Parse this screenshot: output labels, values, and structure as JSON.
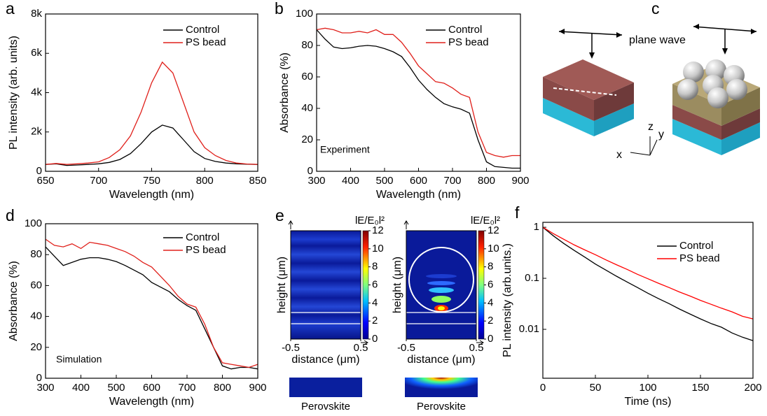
{
  "chart_data": [
    {
      "type": "line",
      "label": "a",
      "xlabel": "Wavelength (nm)",
      "ylabel": "PL intensity (arb. units)",
      "x": [
        650,
        660,
        670,
        680,
        690,
        700,
        710,
        720,
        730,
        740,
        750,
        760,
        770,
        780,
        790,
        800,
        810,
        820,
        830,
        840,
        850
      ],
      "series": [
        {
          "name": "Control",
          "color": "#000000",
          "values": [
            350,
            380,
            300,
            320,
            350,
            380,
            450,
            600,
            900,
            1400,
            2000,
            2350,
            2200,
            1600,
            1000,
            650,
            500,
            420,
            380,
            360,
            350
          ]
        },
        {
          "name": "PS bead",
          "color": "#e0201b",
          "values": [
            350,
            400,
            350,
            380,
            420,
            480,
            700,
            1100,
            1800,
            3000,
            4500,
            5550,
            5000,
            3500,
            2000,
            1200,
            800,
            550,
            420,
            370,
            350
          ]
        }
      ],
      "xlim": [
        650,
        850
      ],
      "xticks": [
        650,
        700,
        750,
        800,
        850
      ],
      "ylim": [
        0,
        8000
      ],
      "yticks": [
        0,
        {
          "value": 2000,
          "label": "2k"
        },
        {
          "value": 4000,
          "label": "4k"
        },
        {
          "value": 6000,
          "label": "6k"
        },
        {
          "value": 8000,
          "label": "8k"
        }
      ]
    },
    {
      "type": "line",
      "label": "b",
      "xlabel": "Wavelength (nm)",
      "ylabel": "Absorbance (%)",
      "annotation": "Experiment",
      "x": [
        300,
        325,
        350,
        375,
        400,
        425,
        450,
        475,
        500,
        525,
        550,
        575,
        600,
        625,
        650,
        675,
        700,
        725,
        750,
        775,
        800,
        825,
        850,
        875,
        900
      ],
      "series": [
        {
          "name": "Control",
          "color": "#000000",
          "values": [
            90,
            84,
            79,
            78,
            78.5,
            79.5,
            80,
            79.5,
            78,
            76,
            73,
            66,
            58,
            52,
            47,
            43,
            41,
            39.5,
            37,
            20,
            6,
            3,
            2.5,
            2,
            2
          ]
        },
        {
          "name": "PS bead",
          "color": "#e0201b",
          "values": [
            90,
            91,
            90,
            88,
            88,
            89,
            88,
            90,
            87,
            87,
            82,
            75,
            67,
            62,
            57,
            56,
            53,
            49,
            47,
            25,
            12,
            10,
            9,
            10,
            10
          ]
        }
      ],
      "xlim": [
        300,
        900
      ],
      "xticks": [
        300,
        400,
        500,
        600,
        700,
        800,
        900
      ],
      "ylim": [
        0,
        100
      ],
      "yticks": [
        0,
        20,
        40,
        60,
        80,
        100
      ]
    },
    {
      "type": "diagram",
      "label": "c",
      "annotation": "plane wave",
      "axis_labels": [
        "z",
        "y",
        "x"
      ]
    },
    {
      "type": "line",
      "label": "d",
      "xlabel": "Wavelength (nm)",
      "ylabel": "Absorbance (%)",
      "annotation": "Simulation",
      "x": [
        300,
        325,
        350,
        375,
        400,
        425,
        450,
        475,
        500,
        525,
        550,
        575,
        600,
        625,
        650,
        675,
        700,
        725,
        750,
        775,
        800,
        825,
        850,
        875,
        900
      ],
      "series": [
        {
          "name": "Control",
          "color": "#000000",
          "values": [
            85,
            79,
            73,
            75,
            77,
            78,
            78,
            77,
            75.5,
            73,
            70,
            67,
            62,
            59,
            56,
            51,
            47,
            44,
            32,
            20,
            8,
            6,
            7,
            7,
            6
          ]
        },
        {
          "name": "PS bead",
          "color": "#e0201b",
          "values": [
            90,
            86,
            85,
            87,
            84,
            88,
            87,
            86,
            84,
            82,
            79,
            75,
            72,
            66,
            60,
            53,
            48,
            46,
            35,
            20,
            10,
            9,
            8,
            7,
            9
          ]
        }
      ],
      "xlim": [
        300,
        900
      ],
      "xticks": [
        300,
        400,
        500,
        600,
        700,
        800,
        900
      ],
      "ylim": [
        0,
        100
      ],
      "yticks": [
        0,
        20,
        40,
        60,
        80,
        100
      ]
    },
    {
      "type": "heatmap",
      "label": "e",
      "colorbar_label": "lE/E₀l²",
      "xlabel": "distance (μm)",
      "ylabel": "height (μm)",
      "caption": "Perovskite",
      "xlim": [
        -0.5,
        0.5
      ],
      "xticks": [
        -0.5,
        0.5
      ],
      "clim": [
        0,
        12
      ],
      "cticks": [
        0,
        2,
        4,
        6,
        8,
        10,
        12
      ]
    },
    {
      "type": "line",
      "label": "f",
      "xlabel": "Time (ns)",
      "ylabel": "PL intensity (arb.units.)",
      "ylog": true,
      "x": [
        0,
        10,
        20,
        30,
        40,
        50,
        60,
        70,
        80,
        90,
        100,
        110,
        120,
        130,
        140,
        150,
        160,
        170,
        180,
        190,
        200
      ],
      "series": [
        {
          "name": "Control",
          "color": "#000000",
          "values": [
            1,
            0.68,
            0.48,
            0.35,
            0.26,
            0.19,
            0.145,
            0.11,
            0.085,
            0.066,
            0.051,
            0.04,
            0.032,
            0.025,
            0.02,
            0.016,
            0.013,
            0.011,
            0.0085,
            0.007,
            0.006
          ]
        },
        {
          "name": "PS bead",
          "color": "#ff0000",
          "values": [
            1,
            0.75,
            0.58,
            0.45,
            0.36,
            0.29,
            0.23,
            0.185,
            0.15,
            0.12,
            0.098,
            0.08,
            0.066,
            0.054,
            0.045,
            0.037,
            0.031,
            0.026,
            0.022,
            0.018,
            0.016
          ]
        }
      ],
      "xlim": [
        0,
        200
      ],
      "xticks": [
        0,
        50,
        100,
        150,
        200
      ],
      "ylim": [
        0.0011,
        1.25
      ],
      "yticks": [
        0.01,
        0.1,
        1
      ]
    }
  ]
}
